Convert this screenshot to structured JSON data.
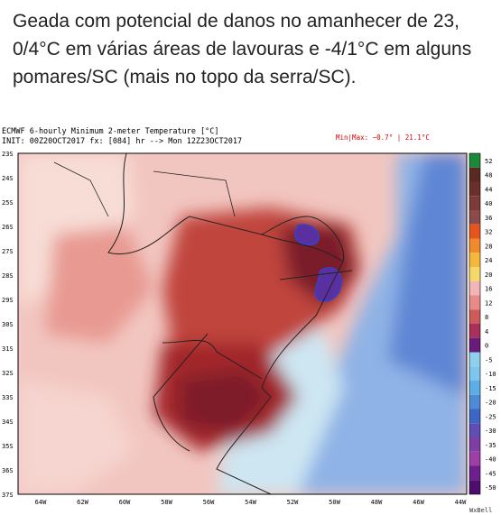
{
  "caption": "Geada com potencial de danos no amanhecer de 23, 0/4°C em várias áreas de lavouras e -4/1°C em alguns pomares/SC (mais no topo da serra/SC).",
  "map": {
    "title": "ECMWF 6-hourly Minimum 2-meter Temperature [°C]",
    "init": "INIT: 00Z20OCT2017 fx: [084] hr --> Mon 12Z23OCT2017",
    "minmax": "Min|Max: −0.7° | 21.1°C",
    "lat_labels": [
      "23S",
      "24S",
      "25S",
      "26S",
      "27S",
      "28S",
      "29S",
      "30S",
      "31S",
      "32S",
      "33S",
      "34S",
      "35S",
      "36S",
      "37S"
    ],
    "lon_labels": [
      "64W",
      "62W",
      "60W",
      "58W",
      "56W",
      "54W",
      "52W",
      "50W",
      "48W",
      "46W",
      "44W"
    ],
    "colorbar_labels": [
      52,
      48,
      44,
      40,
      36,
      32,
      28,
      24,
      20,
      16,
      12,
      8,
      4,
      0,
      -5,
      -10,
      -15,
      -20,
      -25,
      -30,
      -35,
      -40,
      -45,
      -50
    ],
    "credit": "WxBell"
  }
}
